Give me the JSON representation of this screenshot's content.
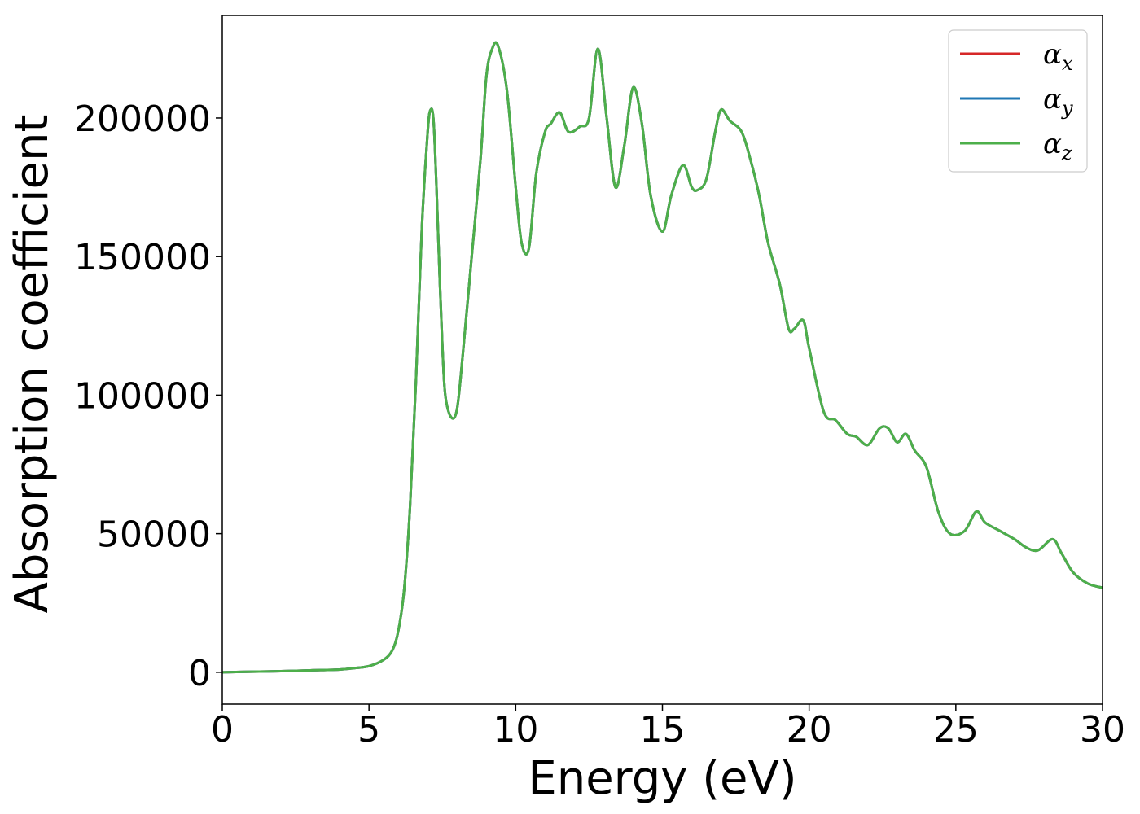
{
  "chart_data": {
    "type": "line",
    "xlabel": "Energy (eV)",
    "ylabel": "Absorption coefficient",
    "xlim": [
      0,
      30
    ],
    "ylim": [
      -11500,
      237000
    ],
    "xticks": [
      0,
      5,
      10,
      15,
      20,
      25,
      30
    ],
    "yticks": [
      0,
      50000,
      100000,
      150000,
      200000
    ],
    "grid": false,
    "legend_position": "top-right",
    "x": [
      0,
      1,
      2,
      3,
      4,
      4.5,
      5,
      5.5,
      5.8,
      6.0,
      6.2,
      6.4,
      6.6,
      6.8,
      7.0,
      7.1,
      7.2,
      7.3,
      7.4,
      7.5,
      7.6,
      7.8,
      8.0,
      8.2,
      8.5,
      8.8,
      9.0,
      9.2,
      9.4,
      9.7,
      10.0,
      10.2,
      10.45,
      10.7,
      11.0,
      11.2,
      11.5,
      11.8,
      12.2,
      12.5,
      12.8,
      13.1,
      13.4,
      13.7,
      14.0,
      14.3,
      14.6,
      15.0,
      15.3,
      15.7,
      16.0,
      16.2,
      16.5,
      16.8,
      17.0,
      17.3,
      17.7,
      18.0,
      18.3,
      18.6,
      19.0,
      19.3,
      19.5,
      19.8,
      20.0,
      20.5,
      20.9,
      21.3,
      21.6,
      22.0,
      22.4,
      22.7,
      23.0,
      23.3,
      23.6,
      24.0,
      24.4,
      24.8,
      25.3,
      25.7,
      26.0,
      26.5,
      27.0,
      27.4,
      27.8,
      28.3,
      28.6,
      29.0,
      29.5,
      30.0
    ],
    "series": [
      {
        "name": "α_x",
        "label_symbol": "α",
        "label_sub": "x",
        "color": "#d62728",
        "values": [
          0,
          200,
          400,
          700,
          1000,
          1500,
          2200,
          4500,
          8000,
          15000,
          30000,
          60000,
          105000,
          160000,
          195000,
          203000,
          199000,
          175000,
          145000,
          118000,
          100000,
          92000,
          95000,
          115000,
          150000,
          185000,
          215000,
          225000,
          226000,
          210000,
          175000,
          155000,
          153000,
          180000,
          195000,
          198000,
          202000,
          195000,
          197000,
          200000,
          225000,
          200000,
          175000,
          190000,
          211000,
          198000,
          172000,
          159000,
          172000,
          183000,
          175000,
          174000,
          178000,
          195000,
          203000,
          199000,
          195000,
          185000,
          172000,
          155000,
          140000,
          124000,
          124000,
          127000,
          117000,
          94000,
          91000,
          86000,
          85000,
          82000,
          88000,
          88000,
          83000,
          86000,
          80000,
          74000,
          58000,
          50000,
          51000,
          58000,
          54000,
          51000,
          48000,
          45000,
          44000,
          48000,
          43000,
          36000,
          32000,
          30500
        ]
      },
      {
        "name": "α_y",
        "label_symbol": "α",
        "label_sub": "y",
        "color": "#1f77b4",
        "values": [
          0,
          200,
          400,
          700,
          1000,
          1500,
          2200,
          4500,
          8000,
          15000,
          30000,
          60000,
          105000,
          160000,
          195000,
          203000,
          199000,
          175000,
          145000,
          118000,
          100000,
          92000,
          95000,
          115000,
          150000,
          185000,
          215000,
          225000,
          226000,
          210000,
          175000,
          155000,
          153000,
          180000,
          195000,
          198000,
          202000,
          195000,
          197000,
          200000,
          225000,
          200000,
          175000,
          190000,
          211000,
          198000,
          172000,
          159000,
          172000,
          183000,
          175000,
          174000,
          178000,
          195000,
          203000,
          199000,
          195000,
          185000,
          172000,
          155000,
          140000,
          124000,
          124000,
          127000,
          117000,
          94000,
          91000,
          86000,
          85000,
          82000,
          88000,
          88000,
          83000,
          86000,
          80000,
          74000,
          58000,
          50000,
          51000,
          58000,
          54000,
          51000,
          48000,
          45000,
          44000,
          48000,
          43000,
          36000,
          32000,
          30500
        ]
      },
      {
        "name": "α_z",
        "label_symbol": "α",
        "label_sub": "z",
        "color": "#4daf4a",
        "values": [
          0,
          200,
          400,
          700,
          1000,
          1500,
          2200,
          4500,
          8000,
          15000,
          30000,
          60000,
          105000,
          160000,
          195000,
          203000,
          199000,
          175000,
          145000,
          118000,
          100000,
          92000,
          95000,
          115000,
          150000,
          185000,
          215000,
          225000,
          226000,
          210000,
          175000,
          155000,
          153000,
          180000,
          195000,
          198000,
          202000,
          195000,
          197000,
          200000,
          225000,
          200000,
          175000,
          190000,
          211000,
          198000,
          172000,
          159000,
          172000,
          183000,
          175000,
          174000,
          178000,
          195000,
          203000,
          199000,
          195000,
          185000,
          172000,
          155000,
          140000,
          124000,
          124000,
          127000,
          117000,
          94000,
          91000,
          86000,
          85000,
          82000,
          88000,
          88000,
          83000,
          86000,
          80000,
          74000,
          58000,
          50000,
          51000,
          58000,
          54000,
          51000,
          48000,
          45000,
          44000,
          48000,
          43000,
          36000,
          32000,
          30500
        ]
      }
    ]
  }
}
